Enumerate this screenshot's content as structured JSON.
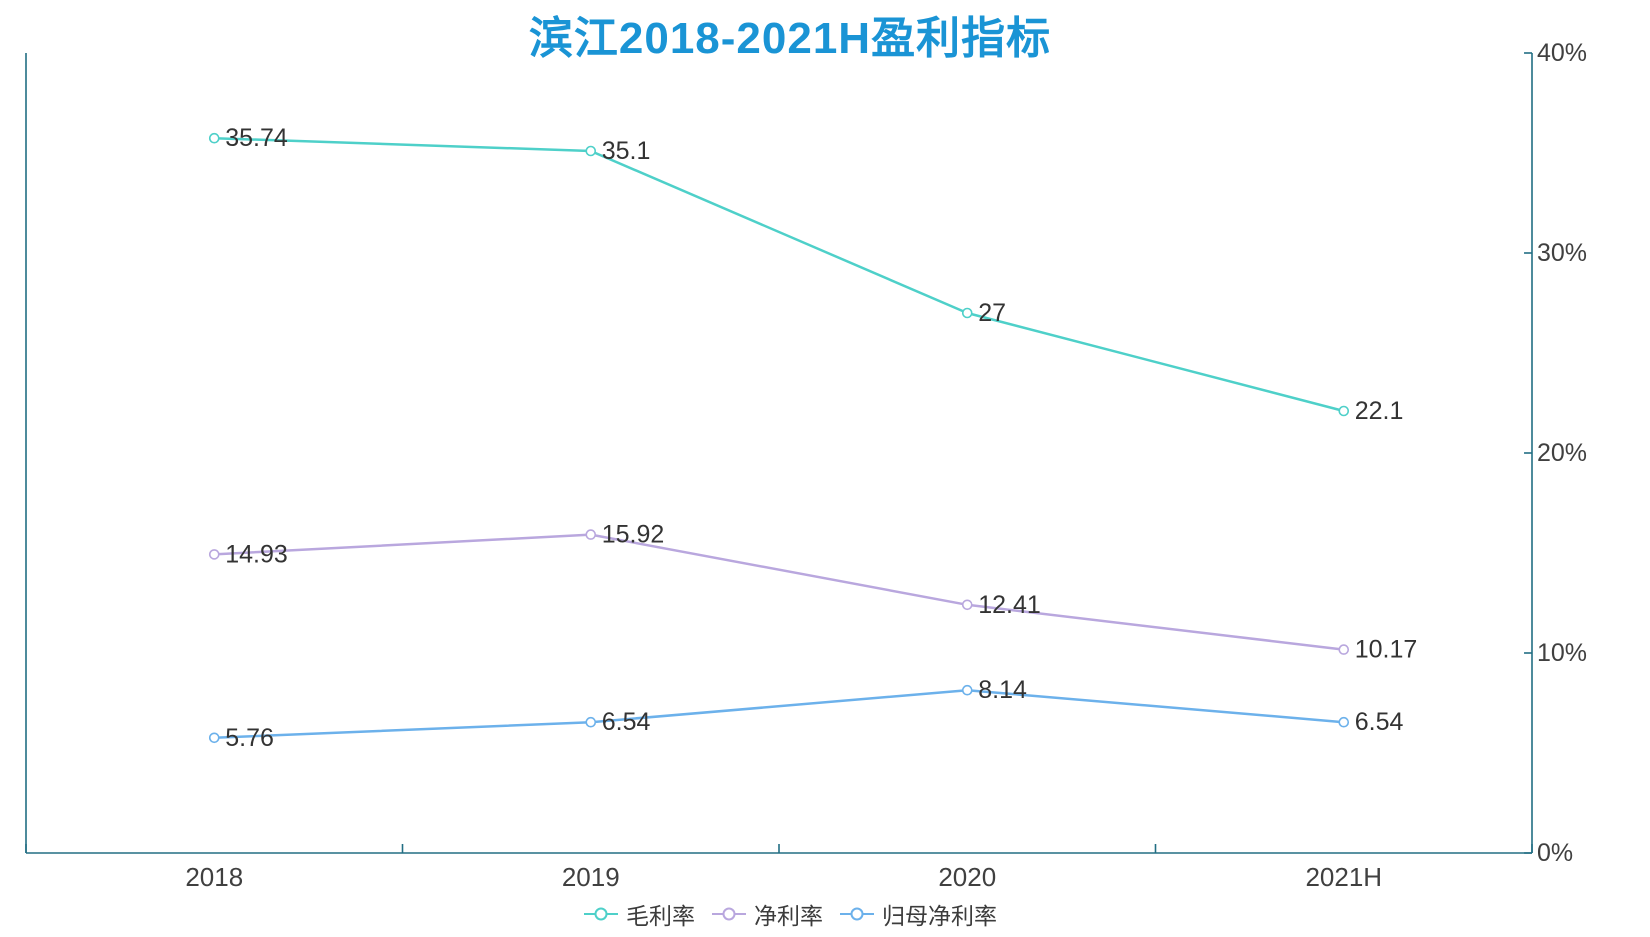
{
  "title": {
    "text": "滨江2018-2021H盈利指标",
    "color": "#1a94d5"
  },
  "chart_data": {
    "type": "line",
    "title": "滨江2018-2021H盈利指标",
    "categories": [
      "2018",
      "2019",
      "2020",
      "2021H"
    ],
    "series": [
      {
        "name": "毛利率",
        "color": "#4ed0c9",
        "values": [
          35.74,
          35.1,
          27,
          22.1
        ]
      },
      {
        "name": "净利率",
        "color": "#b9a7de",
        "values": [
          14.93,
          15.92,
          12.41,
          10.17
        ]
      },
      {
        "name": "归母净利率",
        "color": "#6cb1eb",
        "values": [
          5.76,
          6.54,
          8.14,
          6.54
        ]
      }
    ],
    "xlabel": "",
    "ylabel": "",
    "ylim": [
      0,
      40
    ],
    "y_ticks": [
      "0%",
      "10%",
      "20%",
      "30%",
      "40%"
    ],
    "y_axis_position": "right",
    "grid": false,
    "legend_position": "bottom",
    "marker": "hollow-circle",
    "data_labels": true,
    "axis_color": "#226e84",
    "label_color": "#333333",
    "tick_label_color": "#404040"
  }
}
